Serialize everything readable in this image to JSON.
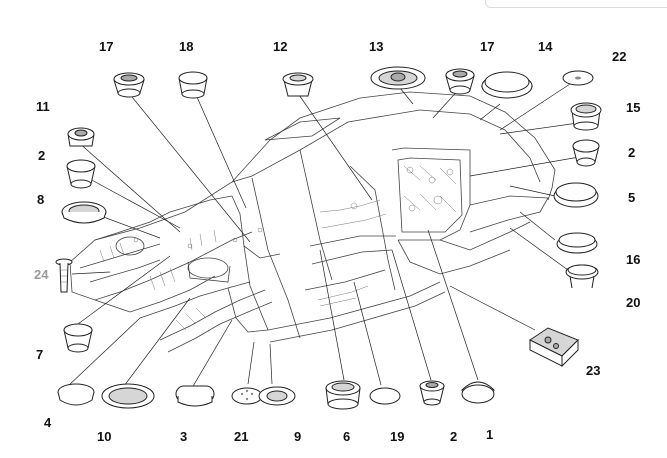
{
  "callouts": [
    {
      "id": "c17a",
      "text": "17"
    },
    {
      "id": "c18",
      "text": "18"
    },
    {
      "id": "c12",
      "text": "12"
    },
    {
      "id": "c13",
      "text": "13"
    },
    {
      "id": "c17b",
      "text": "17"
    },
    {
      "id": "c14",
      "text": "14"
    },
    {
      "id": "c22",
      "text": "22"
    },
    {
      "id": "c11",
      "text": "11"
    },
    {
      "id": "c15",
      "text": "15"
    },
    {
      "id": "c2a",
      "text": "2"
    },
    {
      "id": "c2b",
      "text": "2"
    },
    {
      "id": "c8",
      "text": "8"
    },
    {
      "id": "c5",
      "text": "5"
    },
    {
      "id": "c24",
      "text": "24"
    },
    {
      "id": "c16",
      "text": "16"
    },
    {
      "id": "c20",
      "text": "20"
    },
    {
      "id": "c7",
      "text": "7"
    },
    {
      "id": "c23",
      "text": "23"
    },
    {
      "id": "c4",
      "text": "4"
    },
    {
      "id": "c10",
      "text": "10"
    },
    {
      "id": "c3",
      "text": "3"
    },
    {
      "id": "c21",
      "text": "21"
    },
    {
      "id": "c9",
      "text": "9"
    },
    {
      "id": "c6",
      "text": "6"
    },
    {
      "id": "c19",
      "text": "19"
    },
    {
      "id": "c2c",
      "text": "2"
    },
    {
      "id": "c1",
      "text": "1"
    }
  ]
}
